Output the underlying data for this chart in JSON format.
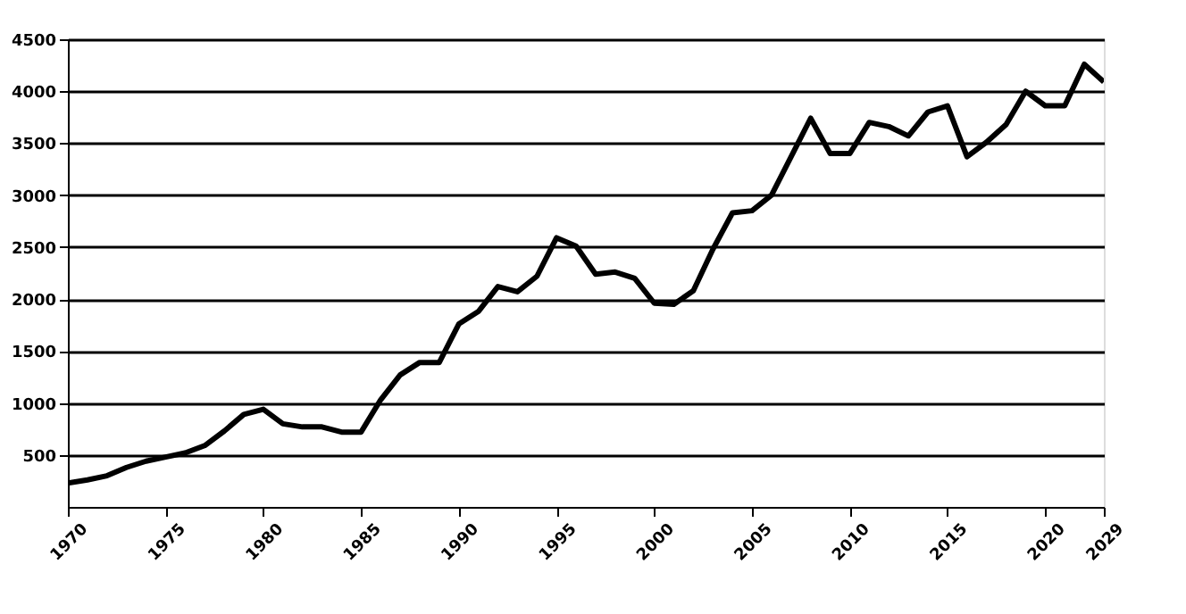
{
  "chart_data": {
    "type": "line",
    "categories": [
      "1970",
      null,
      null,
      null,
      null,
      "1975",
      null,
      null,
      null,
      null,
      "1980",
      null,
      null,
      null,
      null,
      "1985",
      null,
      null,
      null,
      null,
      "1990",
      null,
      null,
      null,
      null,
      "1995",
      null,
      null,
      null,
      null,
      "2000",
      null,
      null,
      null,
      null,
      "2005",
      null,
      null,
      null,
      null,
      "2010",
      null,
      null,
      null,
      null,
      "2015",
      null,
      null,
      null,
      null,
      "2020",
      null,
      null,
      "2029"
    ],
    "series": [
      {
        "color": "#000000",
        "values": [
          230,
          260,
          300,
          380,
          440,
          480,
          520,
          590,
          730,
          890,
          940,
          800,
          770,
          770,
          720,
          720,
          1030,
          1270,
          1390,
          1390,
          1760,
          1880,
          2120,
          2070,
          2220,
          2590,
          2510,
          2240,
          2260,
          2200,
          1960,
          1950,
          2080,
          2480,
          2830,
          2850,
          3000,
          3370,
          3740,
          3400,
          3400,
          3700,
          3660,
          3570,
          3800,
          3860,
          3370,
          3510,
          3680,
          4000,
          3860,
          3860,
          4260,
          4090
        ]
      }
    ],
    "ylim": [
      0,
      4500
    ],
    "yticks": [
      500,
      1000,
      1500,
      2000,
      2500,
      3000,
      3500,
      4000,
      4500
    ],
    "grid": "y",
    "legend": false,
    "marker": "none",
    "line_style": "solid"
  }
}
